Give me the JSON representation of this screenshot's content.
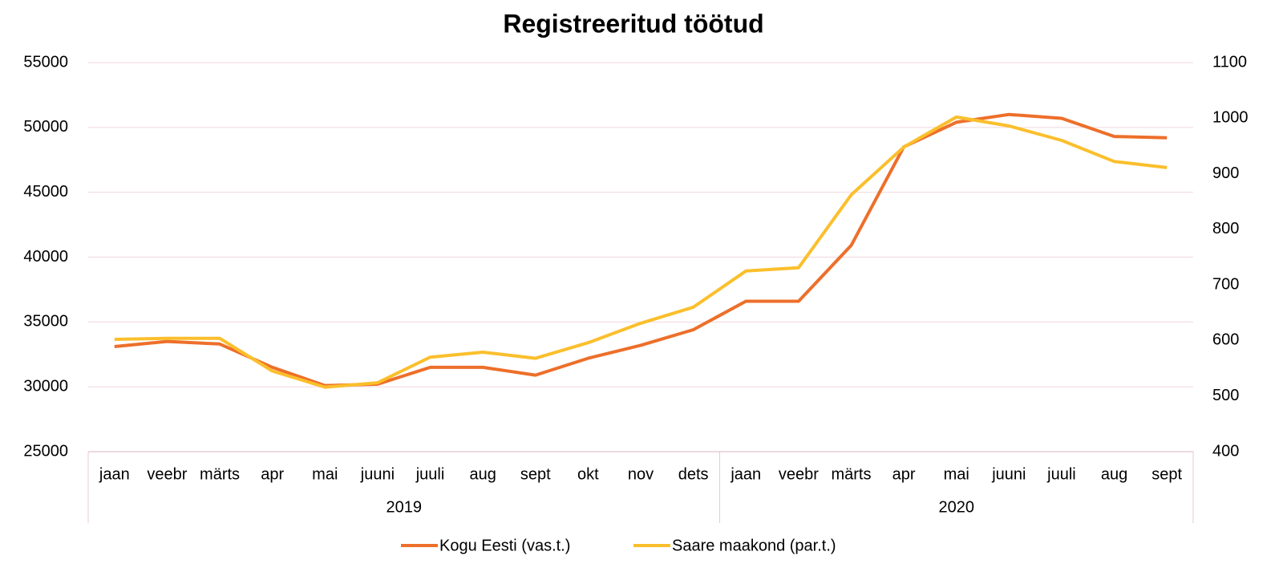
{
  "chart_data": {
    "type": "line",
    "title": "Registreeritud töötud",
    "category_groups": [
      {
        "name": "2019",
        "categories": [
          "jaan",
          "veebr",
          "märts",
          "apr",
          "mai",
          "juuni",
          "juuli",
          "aug",
          "sept",
          "okt",
          "nov",
          "dets"
        ]
      },
      {
        "name": "2020",
        "categories": [
          "jaan",
          "veebr",
          "märts",
          "apr",
          "mai",
          "juuni",
          "juuli",
          "aug",
          "sept"
        ]
      }
    ],
    "series": [
      {
        "name": "Kogu Eesti (vas.t.)",
        "color": "#ed6f2a",
        "axis": "y",
        "values": [
          33100,
          33500,
          33300,
          31500,
          30100,
          30200,
          31500,
          31500,
          30900,
          32200,
          33200,
          34400,
          36600,
          36600,
          40900,
          48500,
          50400,
          51000,
          50700,
          49300,
          49200
        ]
      },
      {
        "name": "Saare maakond (par.t.)",
        "color": "#fbbf2c",
        "axis": "y2",
        "values": [
          602,
          604,
          604,
          545,
          516,
          524,
          570,
          579,
          568,
          596,
          631,
          660,
          725,
          731,
          862,
          948,
          1002,
          986,
          960,
          922,
          911
        ]
      }
    ],
    "ylim": [
      25000,
      55000
    ],
    "yticks": [
      25000,
      30000,
      35000,
      40000,
      45000,
      50000,
      55000
    ],
    "y2lim": [
      400,
      1100
    ],
    "y2ticks": [
      400,
      500,
      600,
      700,
      800,
      900,
      1000,
      1100
    ],
    "grid": true,
    "legend": "bottom"
  }
}
